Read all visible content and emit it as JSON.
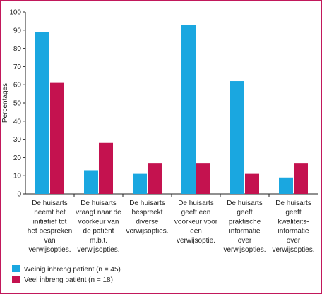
{
  "chart_data": {
    "type": "bar",
    "ylabel": "Percentages",
    "ylim": [
      0,
      100
    ],
    "yticks": [
      0,
      10,
      20,
      30,
      40,
      50,
      60,
      70,
      80,
      90,
      100
    ],
    "categories": [
      [
        "De huisarts",
        "neemt het",
        "initiatief tot",
        "het bespreken",
        "van",
        "verwijsopties."
      ],
      [
        "De huisarts",
        "vraagt naar de",
        "voorkeur van",
        "de patiënt",
        "m.b.t.",
        "verwijsopties."
      ],
      [
        "De huisarts",
        "bespreekt",
        "diverse",
        "verwijsopties."
      ],
      [
        "De huisarts",
        "geeft een",
        "voorkeur voor",
        "een",
        "verwijsoptie."
      ],
      [
        "De huisarts",
        "geeft",
        "praktische",
        "informatie",
        "over",
        "verwijsopties."
      ],
      [
        "De huisarts",
        "geeft",
        "kwaliteits-",
        "informatie",
        "over",
        "verwijsopties."
      ]
    ],
    "series": [
      {
        "name": "Weinig inbreng patiënt (n = 45)",
        "color": "#1aa7e0",
        "values": [
          89,
          13,
          11,
          93,
          62,
          9
        ]
      },
      {
        "name": "Veel inbreng patiënt (n = 18)",
        "color": "#c4124f",
        "values": [
          61,
          28,
          17,
          17,
          11,
          17
        ]
      }
    ],
    "grid": false,
    "legend_position": "bottom-left"
  }
}
